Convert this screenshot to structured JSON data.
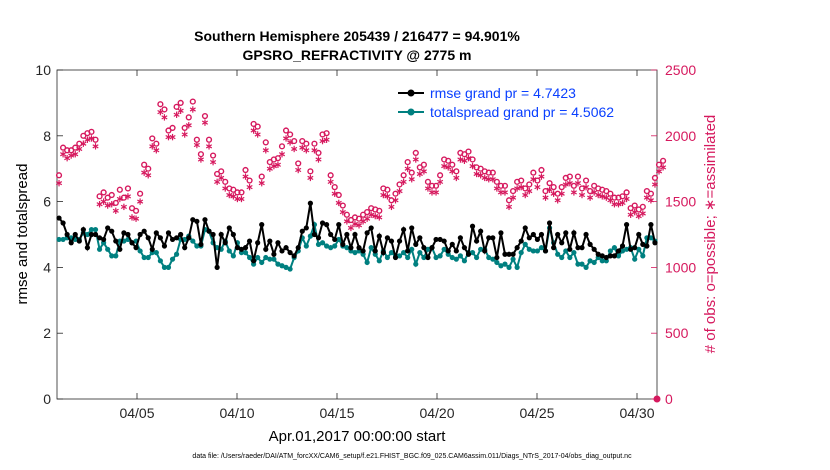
{
  "chart_data": {
    "type": "line",
    "title_line1": "Southern Hemisphere 205439 / 216477 = 94.901%",
    "title_line2": "GPSRO_REFRACTIVITY @ 2775 m",
    "xlabel": "Apr.01,2017 00:00:00 start",
    "ylabel_left": "rmse and totalspread",
    "ylabel_right": "# of obs: o=possible; ∗=assimilated",
    "footer": "data file: /Users/raeder/DAI/ATM_forcXX/CAM6_setup/f.e21.FHIST_BGC.f09_025.CAM6assim.011/Diags_NTrS_2017-04/obs_diag_output.nc",
    "xlim": [
      1,
      31
    ],
    "ylim_left": [
      0,
      10
    ],
    "ylim_right": [
      0,
      2500
    ],
    "x_ticks": [
      5,
      10,
      15,
      20,
      25,
      30
    ],
    "x_tick_labels": [
      "04/05",
      "04/10",
      "04/15",
      "04/20",
      "04/25",
      "04/30"
    ],
    "y_left_ticks": [
      "0",
      "2",
      "4",
      "6",
      "8",
      "10"
    ],
    "y_right_ticks": [
      "0",
      "500",
      "1000",
      "1500",
      "2000",
      "2500"
    ],
    "colors": {
      "rmse": "#000000",
      "spread": "#008080",
      "obs": "#d6195e",
      "legend_text": "#0a40ff"
    },
    "series": [
      {
        "name": "rmse grand pr = 4.7423",
        "axis": "left",
        "values": [
          5.5,
          5.35,
          5.0,
          4.75,
          5.0,
          4.8,
          5.15,
          4.6,
          5.0,
          5.0,
          4.9,
          4.85,
          5.2,
          5.1,
          4.8,
          4.55,
          5.05,
          5.0,
          4.75,
          4.6,
          5.0,
          5.1,
          4.9,
          4.55,
          5.05,
          4.9,
          4.65,
          5.05,
          4.85,
          4.9,
          5.0,
          4.6,
          4.9,
          5.45,
          5.4,
          4.7,
          5.45,
          5.1,
          5.0,
          4.0,
          5.0,
          4.75,
          5.2,
          5.0,
          4.6,
          4.55,
          4.6,
          4.8,
          4.2,
          4.75,
          5.3,
          4.55,
          4.8,
          4.4,
          4.75,
          4.5,
          4.6,
          4.45,
          4.35,
          4.6,
          5.1,
          5.2,
          5.95,
          5.0,
          4.9,
          5.35,
          5.3,
          5.0,
          4.85,
          5.3,
          4.7,
          5.0,
          4.6,
          5.0,
          4.6,
          4.5,
          5.05,
          5.2,
          4.5,
          4.95,
          4.45,
          4.9,
          4.8,
          4.3,
          4.8,
          5.15,
          4.5,
          5.2,
          4.7,
          4.9,
          4.6,
          4.3,
          4.6,
          4.85,
          4.85,
          4.8,
          4.5,
          4.7,
          4.5,
          4.9,
          4.6,
          4.4,
          5.25,
          4.8,
          5.1,
          4.5,
          4.9,
          4.9,
          4.3,
          5.05,
          4.4,
          4.4,
          4.4,
          4.6,
          4.8,
          5.2,
          4.9,
          5.0,
          4.85,
          5.0,
          4.5,
          5.35,
          4.6,
          5.0,
          4.75,
          5.05,
          4.55,
          5.05,
          4.6,
          4.6,
          5.0,
          4.7,
          4.55,
          4.4,
          4.35,
          4.3,
          4.35,
          4.35,
          4.5,
          4.65,
          5.3,
          4.55,
          4.6,
          5.0,
          4.7,
          4.65,
          5.3,
          4.75
        ]
      },
      {
        "name": "totalspread grand pr = 4.5062",
        "axis": "left",
        "values": [
          4.85,
          4.85,
          4.9,
          4.9,
          4.85,
          4.85,
          5.05,
          5.0,
          5.15,
          5.15,
          4.55,
          4.75,
          4.55,
          4.35,
          4.35,
          4.8,
          4.8,
          4.85,
          4.75,
          4.8,
          4.5,
          4.3,
          4.3,
          4.45,
          4.45,
          4.2,
          4.0,
          4.0,
          4.25,
          4.4,
          4.85,
          4.85,
          4.95,
          4.8,
          4.65,
          4.65,
          5.15,
          5.1,
          4.75,
          4.6,
          4.55,
          4.8,
          4.5,
          4.35,
          4.75,
          4.45,
          4.45,
          4.3,
          4.1,
          4.3,
          4.15,
          4.3,
          4.25,
          4.25,
          4.1,
          4.05,
          4.0,
          3.95,
          4.3,
          4.5,
          4.9,
          4.65,
          4.95,
          5.3,
          4.7,
          4.75,
          4.65,
          4.6,
          4.65,
          4.85,
          4.65,
          4.6,
          4.5,
          4.45,
          4.5,
          4.4,
          4.15,
          4.6,
          4.4,
          4.2,
          4.5,
          4.3,
          4.45,
          4.35,
          4.35,
          4.45,
          4.3,
          4.55,
          4.1,
          4.45,
          4.3,
          4.55,
          4.6,
          4.3,
          4.35,
          4.55,
          4.4,
          4.3,
          4.25,
          4.35,
          4.2,
          4.45,
          4.45,
          4.3,
          4.55,
          4.55,
          4.3,
          4.25,
          4.15,
          4.05,
          4.1,
          4.0,
          4.25,
          4.0,
          4.45,
          4.7,
          4.55,
          4.5,
          4.5,
          4.6,
          4.5,
          5.2,
          4.75,
          4.4,
          4.3,
          4.5,
          4.3,
          4.45,
          4.1,
          4.1,
          4.0,
          4.2,
          4.15,
          4.3,
          4.2,
          4.2,
          4.5,
          4.6,
          4.35,
          4.5,
          4.55,
          4.6,
          4.25,
          4.55,
          4.35,
          4.9,
          4.9,
          4.8
        ]
      },
      {
        "name": "possible",
        "axis": "right",
        "values": [
          1700,
          1910,
          1890,
          1890,
          1910,
          1940,
          2000,
          2020,
          2030,
          1970,
          1540,
          1570,
          1530,
          1550,
          1490,
          1590,
          1530,
          1600,
          1450,
          1430,
          1560,
          1780,
          1750,
          1980,
          1940,
          2240,
          2200,
          2040,
          2060,
          2220,
          2250,
          2060,
          2140,
          2260,
          1970,
          1860,
          2150,
          1970,
          1850,
          1710,
          1730,
          1650,
          1600,
          1590,
          1570,
          1570,
          1740,
          1660,
          2090,
          2070,
          1690,
          1950,
          1800,
          1820,
          1830,
          1920,
          2040,
          2010,
          1960,
          1790,
          1960,
          1940,
          1730,
          1940,
          1870,
          2010,
          2020,
          1700,
          1610,
          1550,
          1470,
          1400,
          1360,
          1380,
          1370,
          1400,
          1420,
          1450,
          1440,
          1430,
          1600,
          1590,
          1510,
          1560,
          1630,
          1700,
          1800,
          1720,
          1870,
          1760,
          1780,
          1650,
          1620,
          1620,
          1700,
          1820,
          1810,
          1780,
          1730,
          1870,
          1860,
          1880,
          1820,
          1760,
          1750,
          1730,
          1720,
          1720,
          1650,
          1620,
          1620,
          1510,
          1580,
          1650,
          1660,
          1600,
          1630,
          1720,
          1660,
          1740,
          1580,
          1640,
          1610,
          1560,
          1610,
          1680,
          1690,
          1620,
          1690,
          1600,
          1660,
          1580,
          1620,
          1600,
          1590,
          1580,
          1560,
          1530,
          1530,
          1540,
          1570,
          1450,
          1470,
          1440,
          1460,
          1580,
          1560,
          1680,
          1780,
          1810
        ]
      },
      {
        "name": "assimilated",
        "axis": "right",
        "values": [
          1640,
          1860,
          1830,
          1850,
          1860,
          1900,
          1940,
          1970,
          1980,
          1920,
          1480,
          1500,
          1470,
          1480,
          1430,
          1520,
          1460,
          1540,
          1380,
          1370,
          1500,
          1720,
          1700,
          1920,
          1890,
          2180,
          2140,
          1990,
          1990,
          2160,
          2190,
          2010,
          2080,
          2200,
          1930,
          1820,
          2100,
          1920,
          1800,
          1650,
          1680,
          1600,
          1550,
          1540,
          1520,
          1520,
          1690,
          1610,
          2040,
          2010,
          1640,
          1890,
          1750,
          1770,
          1780,
          1860,
          1980,
          1950,
          1900,
          1740,
          1910,
          1890,
          1680,
          1890,
          1820,
          1960,
          1970,
          1650,
          1560,
          1490,
          1420,
          1350,
          1300,
          1330,
          1320,
          1350,
          1370,
          1400,
          1390,
          1380,
          1550,
          1540,
          1460,
          1510,
          1580,
          1650,
          1750,
          1670,
          1820,
          1710,
          1730,
          1600,
          1570,
          1570,
          1650,
          1770,
          1760,
          1730,
          1680,
          1820,
          1810,
          1830,
          1770,
          1710,
          1700,
          1680,
          1670,
          1670,
          1600,
          1570,
          1570,
          1460,
          1530,
          1600,
          1610,
          1550,
          1580,
          1670,
          1610,
          1690,
          1530,
          1590,
          1560,
          1510,
          1560,
          1630,
          1640,
          1570,
          1640,
          1550,
          1610,
          1530,
          1570,
          1550,
          1540,
          1530,
          1510,
          1480,
          1480,
          1490,
          1520,
          1400,
          1420,
          1390,
          1410,
          1530,
          1510,
          1630,
          1730,
          1760
        ]
      }
    ],
    "legend": [
      "rmse grand pr = 4.7423",
      "totalspread grand pr = 4.5062"
    ],
    "legend_position": "top-right"
  }
}
